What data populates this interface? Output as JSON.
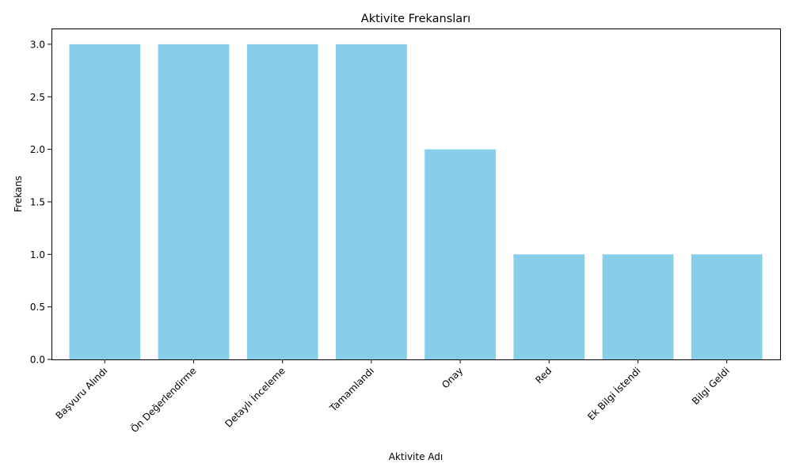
{
  "chart_data": {
    "type": "bar",
    "title": "Aktivite Frekansları",
    "xlabel": "Aktivite Adı",
    "ylabel": "Frekans",
    "categories": [
      "Başvuru Alındı",
      "Ön Değerlendirme",
      "Detaylı İnceleme",
      "Tamamlandı",
      "Onay",
      "Red",
      "Ek Bilgi İstendi",
      "Bilgi Geldi"
    ],
    "values": [
      3,
      3,
      3,
      3,
      2,
      1,
      1,
      1
    ],
    "ylim": [
      0,
      3.15
    ],
    "yticks": [
      "0.0",
      "0.5",
      "1.0",
      "1.5",
      "2.0",
      "2.5",
      "3.0"
    ],
    "grid": false,
    "bar_color": "#87CEEB"
  }
}
